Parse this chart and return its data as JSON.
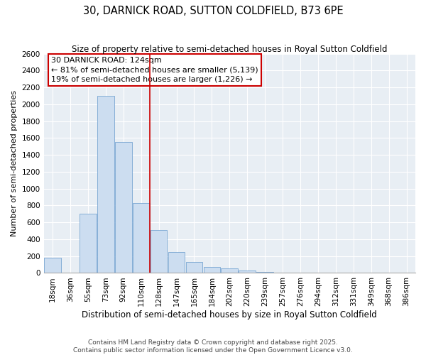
{
  "title": "30, DARNICK ROAD, SUTTON COLDFIELD, B73 6PE",
  "subtitle": "Size of property relative to semi-detached houses in Royal Sutton Coldfield",
  "xlabel": "Distribution of semi-detached houses by size in Royal Sutton Coldfield",
  "ylabel": "Number of semi-detached properties",
  "categories": [
    "18sqm",
    "36sqm",
    "55sqm",
    "73sqm",
    "92sqm",
    "110sqm",
    "128sqm",
    "147sqm",
    "165sqm",
    "184sqm",
    "202sqm",
    "220sqm",
    "239sqm",
    "257sqm",
    "276sqm",
    "294sqm",
    "312sqm",
    "331sqm",
    "349sqm",
    "368sqm",
    "386sqm"
  ],
  "values": [
    180,
    0,
    700,
    2100,
    1550,
    830,
    510,
    250,
    130,
    75,
    55,
    30,
    15,
    0,
    0,
    0,
    0,
    0,
    0,
    0,
    0
  ],
  "bar_color": "#ccddf0",
  "bar_edge_color": "#6699cc",
  "vline_x_index": 6,
  "vline_color": "#cc0000",
  "annotation_title": "30 DARNICK ROAD: 124sqm",
  "annotation_line1": "← 81% of semi-detached houses are smaller (5,139)",
  "annotation_line2": "19% of semi-detached houses are larger (1,226) →",
  "annotation_box_color": "#cc0000",
  "ylim": [
    0,
    2600
  ],
  "yticks": [
    0,
    200,
    400,
    600,
    800,
    1000,
    1200,
    1400,
    1600,
    1800,
    2000,
    2200,
    2400,
    2600
  ],
  "plot_bg_color": "#e8eef4",
  "fig_bg_color": "#ffffff",
  "grid_color": "#ffffff",
  "footer_line1": "Contains HM Land Registry data © Crown copyright and database right 2025.",
  "footer_line2": "Contains public sector information licensed under the Open Government Licence v3.0.",
  "title_fontsize": 10.5,
  "subtitle_fontsize": 8.5,
  "xlabel_fontsize": 8.5,
  "ylabel_fontsize": 8,
  "tick_fontsize": 7.5,
  "annotation_fontsize": 8,
  "footer_fontsize": 6.5
}
